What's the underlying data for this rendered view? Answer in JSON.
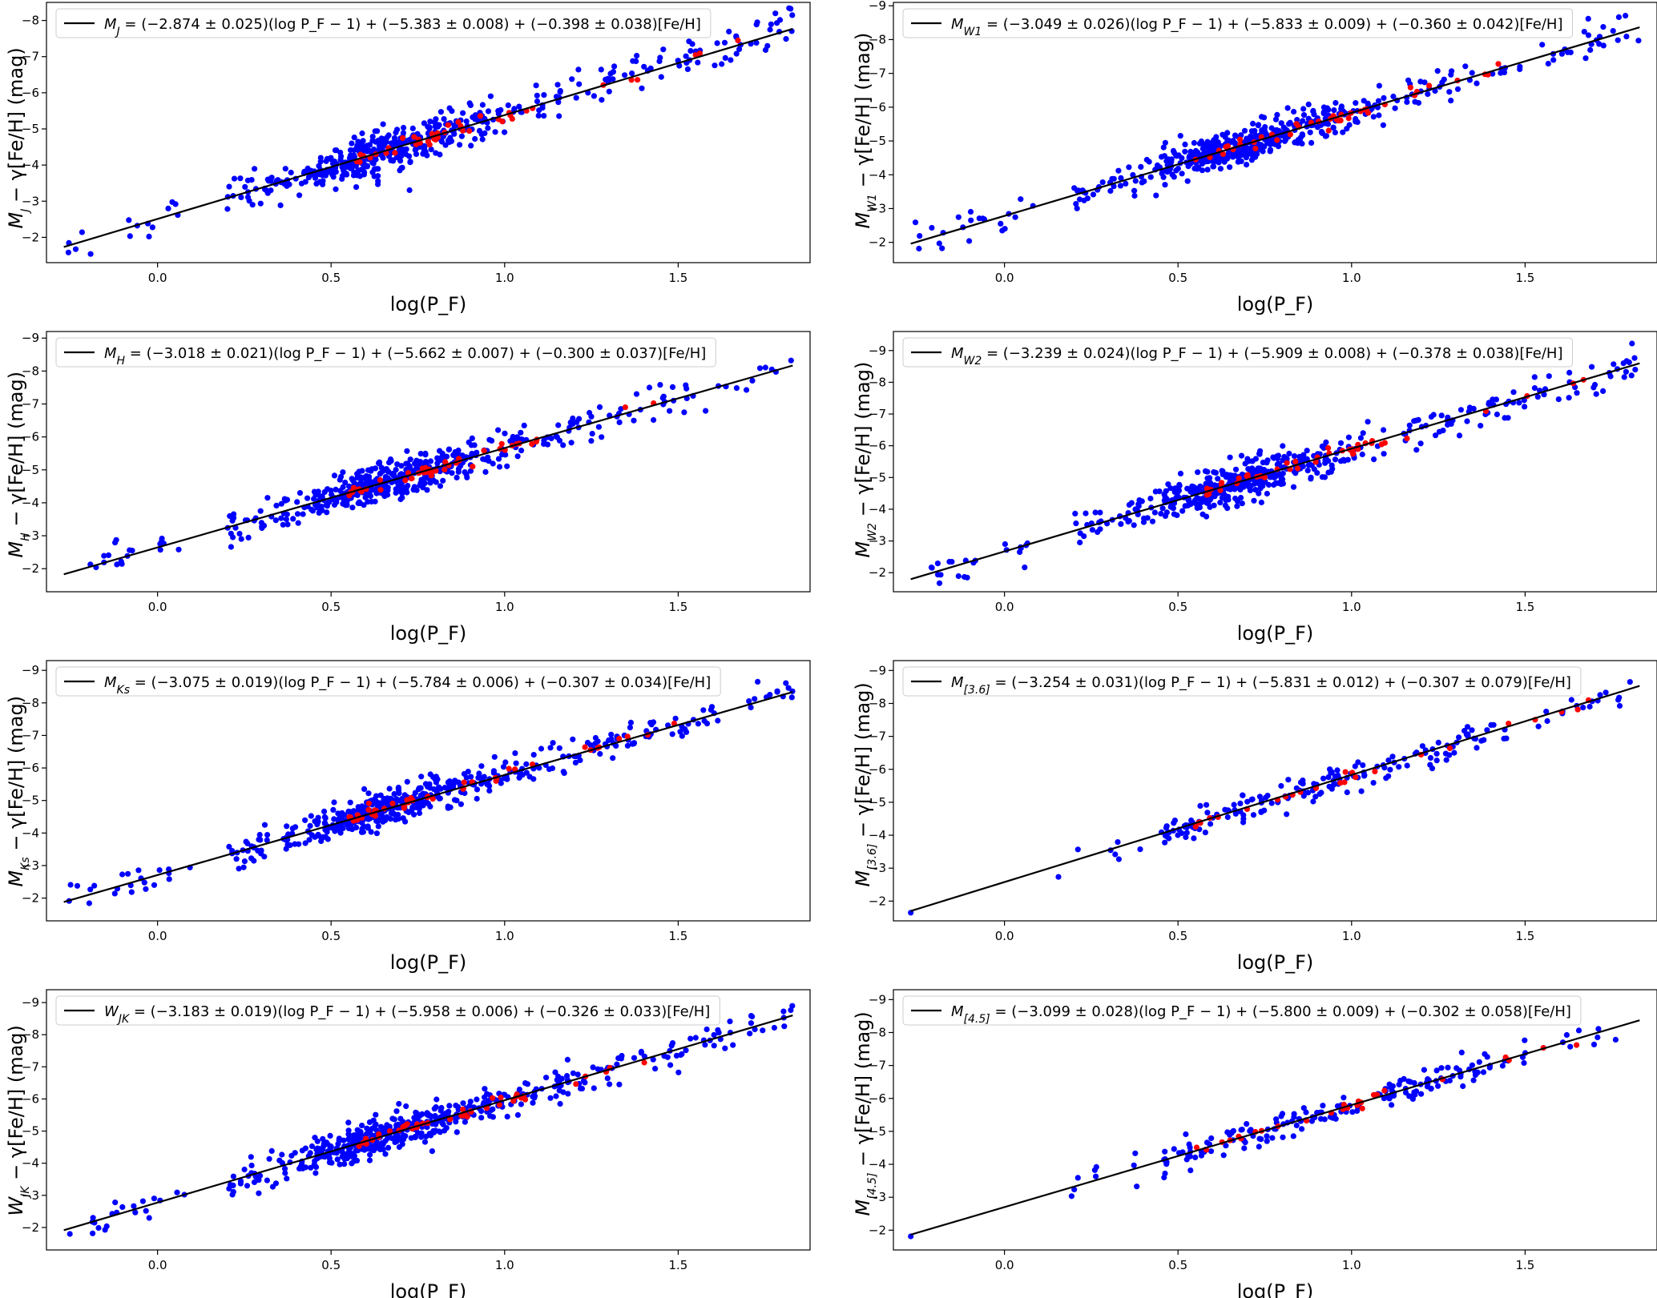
{
  "colors": {
    "fit_line": "#000000",
    "sample_main": "#0000ff",
    "sample_secondary": "#ff0000",
    "frame": "#000000"
  },
  "chart_data": [
    {
      "type": "scatter",
      "panel": 1,
      "fit": {
        "slope": -2.874,
        "intercept": -5.383
      },
      "legend": {
        "symbol": "M",
        "sub": "J",
        "text": " = (−2.874 ± 0.025)(log P_F − 1) + (−5.383 ± 0.008) + (−0.398 ± 0.038)[Fe/H]"
      },
      "ylabel": {
        "symbol": "M",
        "sub": "J",
        "text": " − γ[Fe/H] (mag)"
      },
      "xlabel": "log(P_F)",
      "xlim": [
        -0.32,
        1.88
      ],
      "ylim": [
        -1.3,
        -8.5
      ],
      "xticks": [
        0.0,
        0.5,
        1.0,
        1.5
      ],
      "xtick_labels": [
        "0.0",
        "0.5",
        "1.0",
        "1.5"
      ],
      "yticks": [
        -2,
        -3,
        -4,
        -5,
        -6,
        -7,
        -8
      ],
      "ytick_labels": [
        "−2",
        "−3",
        "−4",
        "−5",
        "−6",
        "−7",
        "−8"
      ],
      "seed": 11,
      "n_blue": 520,
      "n_red": 42,
      "density": "full",
      "scatter": 0.28
    },
    {
      "type": "scatter",
      "panel": 2,
      "fit": {
        "slope": -3.049,
        "intercept": -5.833
      },
      "legend": {
        "symbol": "M",
        "sub": "W1",
        "text": " = (−3.049 ± 0.026)(log P_F − 1) + (−5.833 ± 0.009) + (−0.360 ± 0.042)[Fe/H]"
      },
      "ylabel": {
        "symbol": "M",
        "sub": "W1",
        "text": " − γ[Fe/H] (mag)"
      },
      "xlabel": "log(P_F)",
      "xlim": [
        -0.32,
        1.88
      ],
      "ylim": [
        -1.4,
        -9.1
      ],
      "xticks": [
        0.0,
        0.5,
        1.0,
        1.5
      ],
      "xtick_labels": [
        "0.0",
        "0.5",
        "1.0",
        "1.5"
      ],
      "yticks": [
        -2,
        -3,
        -4,
        -5,
        -6,
        -7,
        -8,
        -9
      ],
      "ytick_labels": [
        "−2",
        "−3",
        "−4",
        "−5",
        "−6",
        "−7",
        "−8",
        "−9"
      ],
      "seed": 23,
      "n_blue": 520,
      "n_red": 42,
      "density": "full",
      "scatter": 0.28
    },
    {
      "type": "scatter",
      "panel": 3,
      "fit": {
        "slope": -3.018,
        "intercept": -5.662
      },
      "legend": {
        "symbol": "M",
        "sub": "H",
        "text": " = (−3.018 ± 0.021)(log P_F − 1) + (−5.662 ± 0.007) + (−0.300 ± 0.037)[Fe/H]"
      },
      "ylabel": {
        "symbol": "M",
        "sub": "H",
        "text": " − γ[Fe/H] (mag)"
      },
      "xlabel": "log(P_F)",
      "xlim": [
        -0.32,
        1.88
      ],
      "ylim": [
        -1.3,
        -9.2
      ],
      "xticks": [
        0.0,
        0.5,
        1.0,
        1.5
      ],
      "xtick_labels": [
        "0.0",
        "0.5",
        "1.0",
        "1.5"
      ],
      "yticks": [
        -2,
        -3,
        -4,
        -5,
        -6,
        -7,
        -8,
        -9
      ],
      "ytick_labels": [
        "−2",
        "−3",
        "−4",
        "−5",
        "−6",
        "−7",
        "−8",
        "−9"
      ],
      "seed": 37,
      "n_blue": 520,
      "n_red": 42,
      "density": "full",
      "scatter": 0.27
    },
    {
      "type": "scatter",
      "panel": 4,
      "fit": {
        "slope": -3.239,
        "intercept": -5.909
      },
      "legend": {
        "symbol": "M",
        "sub": "W2",
        "text": " = (−3.239 ± 0.024)(log P_F − 1) + (−5.909 ± 0.008) + (−0.378 ± 0.038)[Fe/H]"
      },
      "ylabel": {
        "symbol": "M",
        "sub": "W2",
        "text": " − γ[Fe/H] (mag)"
      },
      "xlabel": "log(P_F)",
      "xlim": [
        -0.32,
        1.88
      ],
      "ylim": [
        -1.4,
        -9.6
      ],
      "xticks": [
        0.0,
        0.5,
        1.0,
        1.5
      ],
      "xtick_labels": [
        "0.0",
        "0.5",
        "1.0",
        "1.5"
      ],
      "yticks": [
        -2,
        -3,
        -4,
        -5,
        -6,
        -7,
        -8,
        -9
      ],
      "ytick_labels": [
        "−2",
        "−3",
        "−4",
        "−5",
        "−6",
        "−7",
        "−8",
        "−9"
      ],
      "seed": 41,
      "n_blue": 520,
      "n_red": 42,
      "density": "full",
      "scatter": 0.3
    },
    {
      "type": "scatter",
      "panel": 5,
      "fit": {
        "slope": -3.075,
        "intercept": -5.784
      },
      "legend": {
        "symbol": "M",
        "sub": "Ks",
        "text": " = (−3.075 ± 0.019)(log P_F − 1) + (−5.784 ± 0.006) + (−0.307 ± 0.034)[Fe/H]"
      },
      "ylabel": {
        "symbol": "M",
        "sub": "Ks",
        "text": " − γ[Fe/H] (mag)"
      },
      "xlabel": "log(P_F)",
      "xlim": [
        -0.32,
        1.88
      ],
      "ylim": [
        -1.3,
        -9.3
      ],
      "xticks": [
        0.0,
        0.5,
        1.0,
        1.5
      ],
      "xtick_labels": [
        "0.0",
        "0.5",
        "1.0",
        "1.5"
      ],
      "yticks": [
        -2,
        -3,
        -4,
        -5,
        -6,
        -7,
        -8,
        -9
      ],
      "ytick_labels": [
        "−2",
        "−3",
        "−4",
        "−5",
        "−6",
        "−7",
        "−8",
        "−9"
      ],
      "seed": 53,
      "n_blue": 520,
      "n_red": 42,
      "density": "full",
      "scatter": 0.27
    },
    {
      "type": "scatter",
      "panel": 6,
      "fit": {
        "slope": -3.254,
        "intercept": -5.831
      },
      "legend": {
        "symbol": "M",
        "sub": "[3.6]",
        "text": " = (−3.254 ± 0.031)(log P_F − 1) + (−5.831 ± 0.012) + (−0.307 ± 0.079)[Fe/H]"
      },
      "ylabel": {
        "symbol": "M",
        "sub": "[3.6]",
        "text": " − γ[Fe/H] (mag)"
      },
      "xlabel": "log(P_F)",
      "xlim": [
        -0.32,
        1.88
      ],
      "ylim": [
        -1.4,
        -9.3
      ],
      "xticks": [
        0.0,
        0.5,
        1.0,
        1.5
      ],
      "xtick_labels": [
        "0.0",
        "0.5",
        "1.0",
        "1.5"
      ],
      "yticks": [
        -2,
        -3,
        -4,
        -5,
        -6,
        -7,
        -8,
        -9
      ],
      "ytick_labels": [
        "−2",
        "−3",
        "−4",
        "−5",
        "−6",
        "−7",
        "−8",
        "−9"
      ],
      "seed": 67,
      "n_blue": 190,
      "n_red": 26,
      "density": "sparse",
      "scatter": 0.22
    },
    {
      "type": "scatter",
      "panel": 7,
      "fit": {
        "slope": -3.183,
        "intercept": -5.958
      },
      "legend": {
        "symbol": "W",
        "sub": "JK",
        "text": " = (−3.183 ± 0.019)(log P_F − 1) + (−5.958 ± 0.006) + (−0.326 ± 0.033)[Fe/H]"
      },
      "ylabel": {
        "symbol": "W",
        "sub": "JK",
        "text": " − γ[Fe/H] (mag)"
      },
      "xlabel": "log(P_F)",
      "xlim": [
        -0.32,
        1.88
      ],
      "ylim": [
        -1.3,
        -9.4
      ],
      "xticks": [
        0.0,
        0.5,
        1.0,
        1.5
      ],
      "xtick_labels": [
        "0.0",
        "0.5",
        "1.0",
        "1.5"
      ],
      "yticks": [
        -2,
        -3,
        -4,
        -5,
        -6,
        -7,
        -8,
        -9
      ],
      "ytick_labels": [
        "−2",
        "−3",
        "−4",
        "−5",
        "−6",
        "−7",
        "−8",
        "−9"
      ],
      "seed": 71,
      "n_blue": 520,
      "n_red": 42,
      "density": "full",
      "scatter": 0.27
    },
    {
      "type": "scatter",
      "panel": 8,
      "fit": {
        "slope": -3.099,
        "intercept": -5.8
      },
      "legend": {
        "symbol": "M",
        "sub": "[4.5]",
        "text": " = (−3.099 ± 0.028)(log P_F − 1) + (−5.800 ± 0.009) + (−0.302 ± 0.058)[Fe/H]"
      },
      "ylabel": {
        "symbol": "M",
        "sub": "[4.5]",
        "text": " − γ[Fe/H] (mag)"
      },
      "xlabel": "log(P_F)",
      "xlim": [
        -0.32,
        1.88
      ],
      "ylim": [
        -1.4,
        -9.3
      ],
      "xticks": [
        0.0,
        0.5,
        1.0,
        1.5
      ],
      "xtick_labels": [
        "0.0",
        "0.5",
        "1.0",
        "1.5"
      ],
      "yticks": [
        -2,
        -3,
        -4,
        -5,
        -6,
        -7,
        -8,
        -9
      ],
      "ytick_labels": [
        "−2",
        "−3",
        "−4",
        "−5",
        "−6",
        "−7",
        "−8",
        "−9"
      ],
      "seed": 83,
      "n_blue": 190,
      "n_red": 26,
      "density": "sparse",
      "scatter": 0.22
    }
  ]
}
